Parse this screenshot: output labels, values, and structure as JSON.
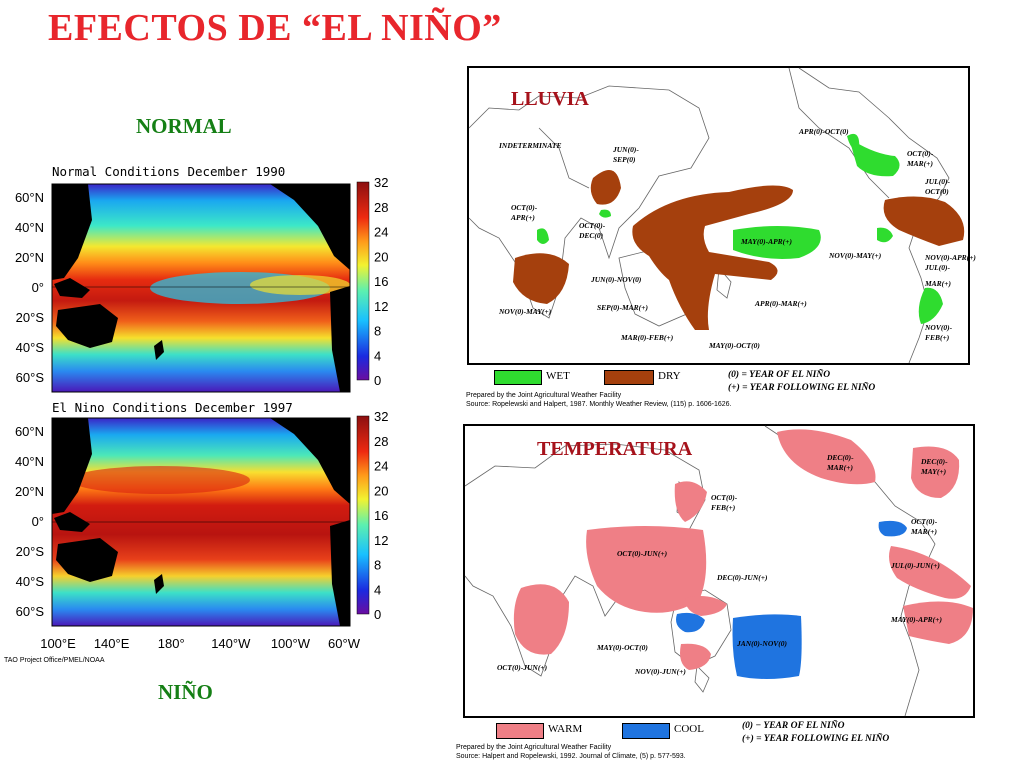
{
  "title": "EFECTOS DE “EL NIÑO”",
  "labels": {
    "normal": "NORMAL",
    "nino": "NIÑO"
  },
  "sst": {
    "normal_title": "Normal Conditions December 1990",
    "nino_title": "El Nino Conditions December 1997",
    "lat_ticks": [
      "60°N",
      "40°N",
      "20°N",
      "0°",
      "20°S",
      "40°S",
      "60°S"
    ],
    "lon_ticks": [
      "100°E",
      "140°E",
      "180°",
      "140°W",
      "100°W",
      "60°W"
    ],
    "colorbar_ticks": [
      "32",
      "28",
      "24",
      "20",
      "16",
      "12",
      "8",
      "4",
      "0"
    ],
    "credit": "TAO Project Office/PMEL/NOAA"
  },
  "rain": {
    "title": "LLUVIA",
    "regions": [
      "INDETERMINATE",
      "JUN(0)-",
      "SEP(0)",
      "OCT(0)-",
      "APR(+)",
      "OCT(0)-",
      "DEC(0)",
      "NOV(0)-MAY(+)",
      "MAY(0)-APR(+)",
      "JUN(0)-NOV(0)",
      "SEP(0)-MAR(+)",
      "MAR(0)-FEB(+)",
      "APR(0)-MAR(+)",
      "MAY(0)-OCT(0)",
      "NOV(0)-MAY(+)",
      "APR(0)-OCT(0)",
      "OCT(0)-",
      "MAR(+)",
      "JUL(0)-",
      "OCT(0)",
      "NOV(0)-APR(+)",
      "JUL(0)-",
      "MAR(+)",
      "NOV(0)-",
      "FEB(+)"
    ],
    "legend": {
      "wet": "WET",
      "dry": "DRY"
    },
    "notes": [
      "(0) = YEAR OF EL NIÑO",
      "(+) = YEAR FOLLOWING EL NIÑO"
    ],
    "credit1": "Prepared by the Joint Agricultural Weather Facility",
    "credit2": "Source: Ropelewski and Halpert, 1987. Monthly Weather Review, (115) p. 1606-1626."
  },
  "temp": {
    "title": "TEMPERATURA",
    "regions": [
      "DEC(0)-",
      "MAR(+)",
      "DEC(0)-",
      "MAY(+)",
      "OCT(0)-",
      "FEB(+)",
      "OCT(0)-",
      "MAR(+)",
      "OCT(0)-JUN(+)",
      "DEC(0)-JUN(+)",
      "JUL(0)-JUN(+)",
      "MAY(0)-APR(+)",
      "JAN(0)-NOV(0)",
      "MAY(0)-OCT(0)",
      "NOV(0)-JUN(+)",
      "OCT(0)-JUN(+)"
    ],
    "legend": {
      "warm": "WARM",
      "cool": "COOL"
    },
    "notes": [
      "(0) − YEAR OF EL NIÑO",
      "(+) = YEAR FOLLOWING EL NIÑO"
    ],
    "credit1": "Prepared by the Joint Agricultural Weather Facility",
    "credit2": "Source: Halpert and Ropelewski, 1992. Journal of Climate, (5) p. 577-593."
  },
  "colors": {
    "title": "#e8262c",
    "label": "#157f15",
    "wet": "#2fdc2f",
    "dry": "#a5400d",
    "warm": "#ef7f86",
    "cool": "#1f74e0"
  }
}
